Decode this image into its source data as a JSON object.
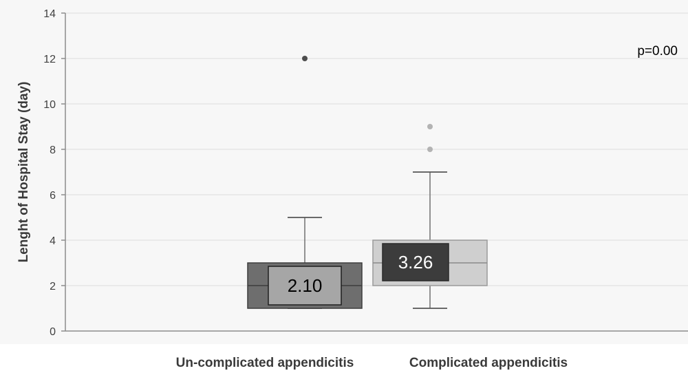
{
  "chart_data": {
    "type": "box",
    "title": "",
    "annotation": "p=0.00",
    "xlabel": "",
    "ylabel": "Lenght of Hospital Stay   (day)",
    "ylim": [
      0,
      14
    ],
    "yticks": [
      0,
      2,
      4,
      6,
      8,
      10,
      12,
      14
    ],
    "grid": true,
    "categories": [
      "Un-complicated appendicitis",
      "Complicated appendicitis"
    ],
    "boxes": [
      {
        "category": "Un-complicated appendicitis",
        "whisker_low": 1,
        "q1": 1,
        "median": 2,
        "q3": 3,
        "whisker_high": 5,
        "outliers": [
          12
        ],
        "mean_label": "2.10",
        "box_color": "#6e6e6e",
        "label_fill": "#a6a6a6",
        "label_text_color": "#000000",
        "outlier_color": "#4d4d4d"
      },
      {
        "category": "Complicated appendicitis",
        "whisker_low": 1,
        "q1": 2,
        "median": 3,
        "q3": 4,
        "whisker_high": 7,
        "outliers": [
          8,
          9
        ],
        "mean_label": "3.26",
        "box_color": "#cfcfcf",
        "label_fill": "#3c3c3c",
        "label_text_color": "#ffffff",
        "outlier_color": "#b3b3b3"
      }
    ]
  }
}
